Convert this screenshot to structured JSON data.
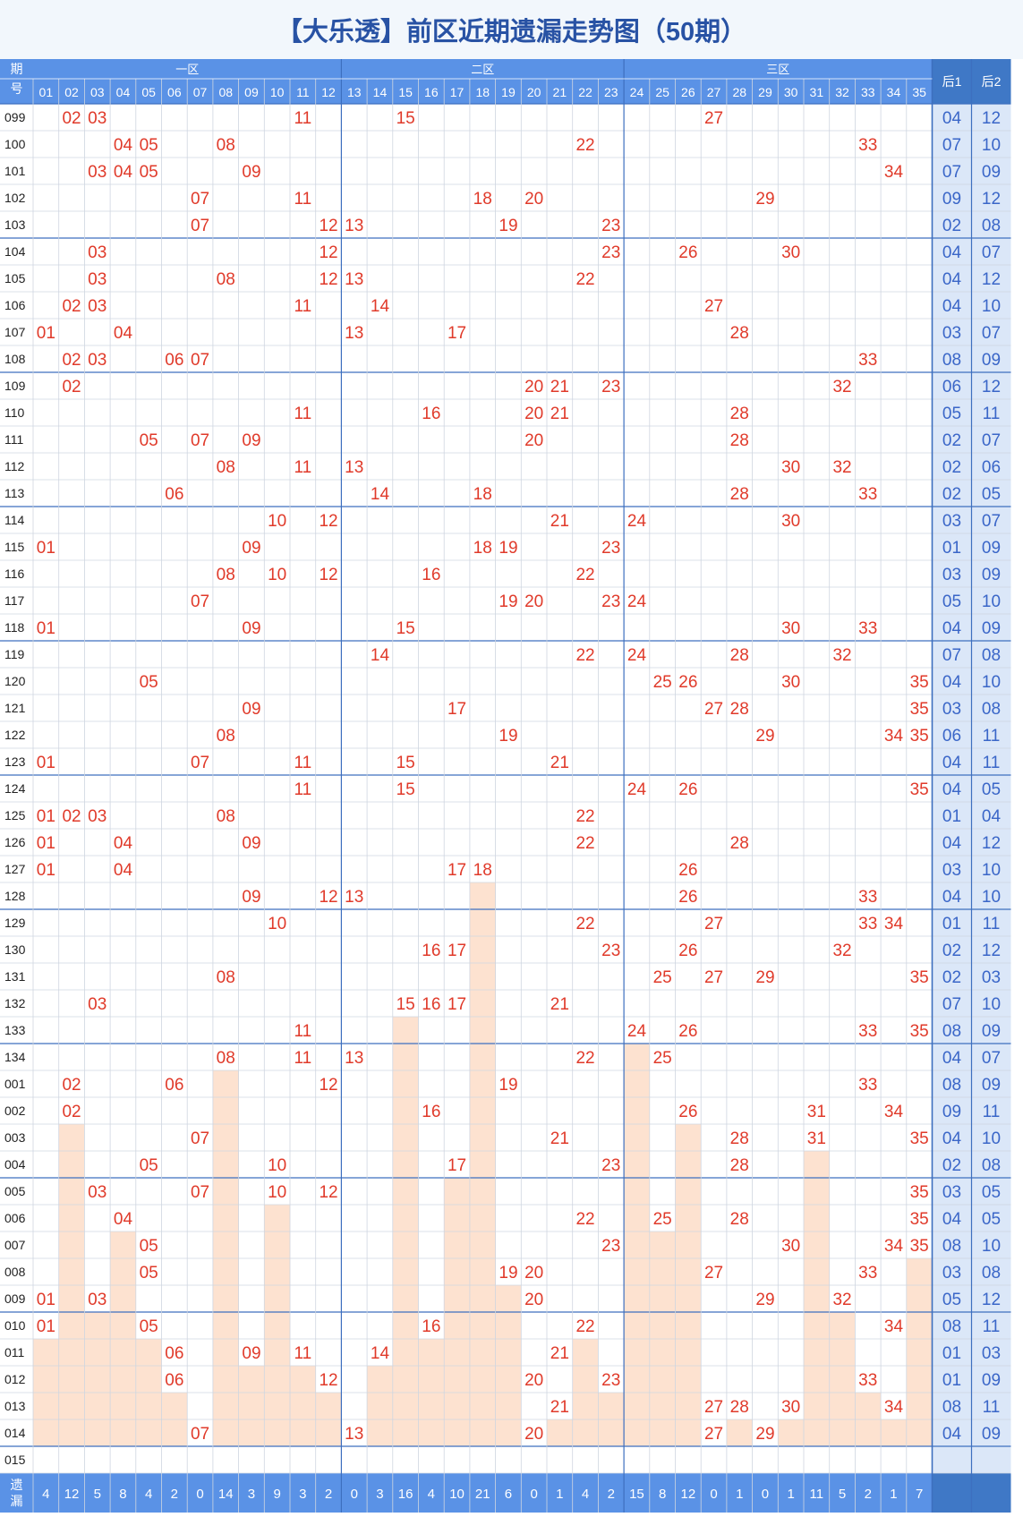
{
  "title": "【大乐透】前区近期遗漏走势图（50期）",
  "colors": {
    "header_bg": "#5a92e6",
    "header_dark": "#3f78c6",
    "back_bg": "#dbe7f8",
    "back_text": "#3a66c8",
    "hit": "#e03a2a",
    "miss_fill": "#fde2d0",
    "grid": "#cfd6e0",
    "divider": "#3d6fbf"
  },
  "header": {
    "period_label": "期号",
    "zone_labels": [
      "一区",
      "二区",
      "三区"
    ],
    "back1_label": "后1",
    "back2_label": "后2",
    "footer_label": "遗漏"
  },
  "chart_data": {
    "type": "table",
    "periods": [
      "099",
      "100",
      "101",
      "102",
      "103",
      "104",
      "105",
      "106",
      "107",
      "108",
      "109",
      "110",
      "111",
      "112",
      "113",
      "114",
      "115",
      "116",
      "117",
      "118",
      "119",
      "120",
      "121",
      "122",
      "123",
      "124",
      "125",
      "126",
      "127",
      "128",
      "129",
      "130",
      "131",
      "132",
      "133",
      "134",
      "001",
      "002",
      "003",
      "004",
      "005",
      "006",
      "007",
      "008",
      "009",
      "010",
      "011",
      "012",
      "013",
      "014",
      "015"
    ],
    "front_columns": [
      "01",
      "02",
      "03",
      "04",
      "05",
      "06",
      "07",
      "08",
      "09",
      "10",
      "11",
      "12",
      "13",
      "14",
      "15",
      "16",
      "17",
      "18",
      "19",
      "20",
      "21",
      "22",
      "23",
      "24",
      "25",
      "26",
      "27",
      "28",
      "29",
      "30",
      "31",
      "32",
      "33",
      "34",
      "35"
    ],
    "front_draws": [
      [
        "02",
        "03",
        "11",
        "15",
        "27"
      ],
      [
        "04",
        "05",
        "08",
        "22",
        "33"
      ],
      [
        "03",
        "04",
        "05",
        "09",
        "34"
      ],
      [
        "07",
        "11",
        "18",
        "20",
        "29"
      ],
      [
        "07",
        "12",
        "13",
        "19",
        "23"
      ],
      [
        "03",
        "12",
        "23",
        "26",
        "30"
      ],
      [
        "03",
        "08",
        "12",
        "13",
        "22"
      ],
      [
        "02",
        "03",
        "11",
        "14",
        "27"
      ],
      [
        "01",
        "04",
        "13",
        "17",
        "28"
      ],
      [
        "02",
        "03",
        "06",
        "07",
        "33"
      ],
      [
        "02",
        "20",
        "21",
        "23",
        "32"
      ],
      [
        "11",
        "16",
        "20",
        "21",
        "28"
      ],
      [
        "05",
        "07",
        "09",
        "20",
        "28"
      ],
      [
        "08",
        "11",
        "13",
        "30",
        "32"
      ],
      [
        "06",
        "14",
        "18",
        "28",
        "33"
      ],
      [
        "10",
        "12",
        "21",
        "24",
        "30"
      ],
      [
        "01",
        "09",
        "18",
        "19",
        "23"
      ],
      [
        "08",
        "10",
        "12",
        "16",
        "22"
      ],
      [
        "07",
        "19",
        "20",
        "23",
        "24"
      ],
      [
        "01",
        "09",
        "15",
        "30",
        "33"
      ],
      [
        "14",
        "22",
        "24",
        "28",
        "32"
      ],
      [
        "05",
        "25",
        "26",
        "30",
        "35"
      ],
      [
        "09",
        "17",
        "27",
        "28",
        "35"
      ],
      [
        "08",
        "19",
        "29",
        "34",
        "35"
      ],
      [
        "01",
        "07",
        "11",
        "15",
        "21"
      ],
      [
        "11",
        "15",
        "24",
        "26",
        "35"
      ],
      [
        "01",
        "02",
        "03",
        "08",
        "22"
      ],
      [
        "01",
        "04",
        "09",
        "22",
        "28"
      ],
      [
        "01",
        "04",
        "17",
        "18",
        "26"
      ],
      [
        "09",
        "12",
        "13",
        "26",
        "33"
      ],
      [
        "10",
        "22",
        "27",
        "33",
        "34"
      ],
      [
        "16",
        "17",
        "23",
        "26",
        "32"
      ],
      [
        "08",
        "25",
        "27",
        "29",
        "35"
      ],
      [
        "03",
        "15",
        "16",
        "17",
        "21"
      ],
      [
        "11",
        "24",
        "26",
        "33",
        "35"
      ],
      [
        "08",
        "11",
        "13",
        "22",
        "25"
      ],
      [
        "02",
        "06",
        "12",
        "19",
        "33"
      ],
      [
        "02",
        "16",
        "26",
        "31",
        "34"
      ],
      [
        "07",
        "21",
        "28",
        "31",
        "35"
      ],
      [
        "05",
        "10",
        "17",
        "23",
        "28"
      ],
      [
        "03",
        "07",
        "10",
        "12",
        "35"
      ],
      [
        "04",
        "22",
        "25",
        "28",
        "35"
      ],
      [
        "05",
        "23",
        "30",
        "34",
        "35"
      ],
      [
        "05",
        "19",
        "20",
        "27",
        "33"
      ],
      [
        "01",
        "03",
        "20",
        "29",
        "32"
      ],
      [
        "01",
        "05",
        "16",
        "22",
        "34"
      ],
      [
        "06",
        "09",
        "11",
        "14",
        "21"
      ],
      [
        "06",
        "12",
        "20",
        "23",
        "33"
      ],
      [
        "21",
        "27",
        "28",
        "30",
        "34"
      ],
      [
        "07",
        "13",
        "20",
        "27",
        "29"
      ],
      []
    ],
    "back": [
      [
        "04",
        "12"
      ],
      [
        "07",
        "10"
      ],
      [
        "07",
        "09"
      ],
      [
        "09",
        "12"
      ],
      [
        "02",
        "08"
      ],
      [
        "04",
        "07"
      ],
      [
        "04",
        "12"
      ],
      [
        "04",
        "10"
      ],
      [
        "03",
        "07"
      ],
      [
        "08",
        "09"
      ],
      [
        "06",
        "12"
      ],
      [
        "05",
        "11"
      ],
      [
        "02",
        "07"
      ],
      [
        "02",
        "06"
      ],
      [
        "02",
        "05"
      ],
      [
        "03",
        "07"
      ],
      [
        "01",
        "09"
      ],
      [
        "03",
        "09"
      ],
      [
        "05",
        "10"
      ],
      [
        "04",
        "09"
      ],
      [
        "07",
        "08"
      ],
      [
        "04",
        "10"
      ],
      [
        "03",
        "08"
      ],
      [
        "06",
        "11"
      ],
      [
        "04",
        "11"
      ],
      [
        "04",
        "05"
      ],
      [
        "01",
        "04"
      ],
      [
        "04",
        "12"
      ],
      [
        "03",
        "10"
      ],
      [
        "04",
        "10"
      ],
      [
        "01",
        "11"
      ],
      [
        "02",
        "12"
      ],
      [
        "02",
        "03"
      ],
      [
        "07",
        "10"
      ],
      [
        "08",
        "09"
      ],
      [
        "04",
        "07"
      ],
      [
        "08",
        "09"
      ],
      [
        "09",
        "11"
      ],
      [
        "04",
        "10"
      ],
      [
        "02",
        "08"
      ],
      [
        "03",
        "05"
      ],
      [
        "04",
        "05"
      ],
      [
        "08",
        "10"
      ],
      [
        "03",
        "08"
      ],
      [
        "05",
        "12"
      ],
      [
        "08",
        "11"
      ],
      [
        "01",
        "03"
      ],
      [
        "01",
        "09"
      ],
      [
        "08",
        "11"
      ],
      [
        "04",
        "09"
      ],
      [
        "",
        ""
      ]
    ],
    "omission": [
      4,
      12,
      5,
      8,
      4,
      2,
      0,
      14,
      3,
      9,
      3,
      2,
      0,
      3,
      16,
      4,
      10,
      21,
      6,
      0,
      1,
      4,
      2,
      15,
      8,
      12,
      0,
      1,
      0,
      1,
      11,
      5,
      2,
      1,
      7
    ]
  }
}
